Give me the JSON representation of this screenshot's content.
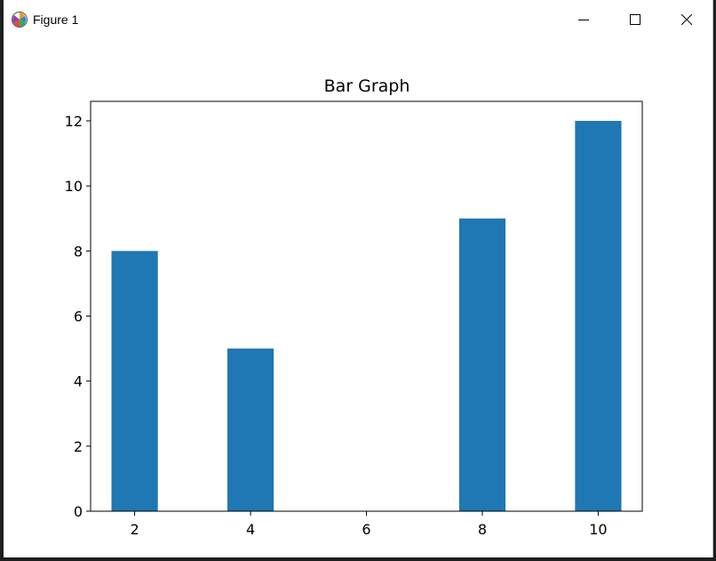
{
  "window": {
    "title": "Figure 1",
    "icons": {
      "app": "matplotlib-logo-icon",
      "minimize": "minimize-icon",
      "maximize": "maximize-icon",
      "close": "close-icon"
    }
  },
  "colors": {
    "bar": "#1f77b4",
    "axes": "#000000",
    "background": "#ffffff"
  },
  "chart_data": {
    "type": "bar",
    "title": "Bar Graph",
    "xlabel": "",
    "ylabel": "",
    "x": [
      2,
      4,
      8,
      10
    ],
    "values": [
      8,
      5,
      9,
      12
    ],
    "bar_width": 0.8,
    "xlim": [
      1.24,
      10.76
    ],
    "ylim": [
      0,
      12.6
    ],
    "xticks": [
      2,
      4,
      6,
      8,
      10
    ],
    "yticks": [
      0,
      2,
      4,
      6,
      8,
      10,
      12
    ],
    "grid": false,
    "legend": "none"
  }
}
